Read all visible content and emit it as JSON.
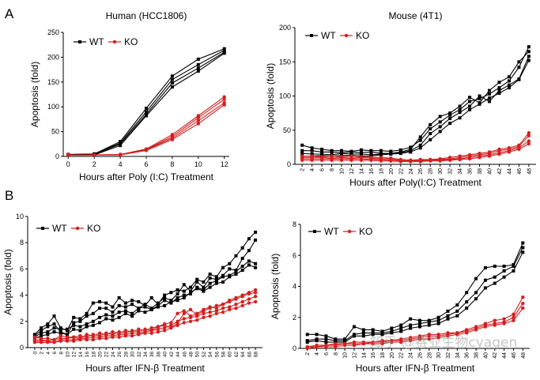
{
  "panel_labels": [
    "A",
    "B"
  ],
  "watermark": "知乎 @赛业生物cyagen",
  "colors": {
    "wt": "#000000",
    "ko": "#d42020"
  },
  "chart_data": [
    {
      "id": "human",
      "type": "line",
      "title": "Human (HCC1806)",
      "xlabel": "Hours after Poly (I:C) Treatment",
      "ylabel": "Apoptosis (fold)",
      "x": [
        0,
        2,
        4,
        6,
        8,
        10,
        12
      ],
      "xticks": [
        0,
        2,
        4,
        6,
        8,
        10,
        12
      ],
      "xticklabels": [
        "0",
        "2",
        "4",
        "6",
        "8",
        "10",
        "12"
      ],
      "ylim": [
        0,
        250
      ],
      "yticks": [
        0,
        50,
        100,
        150,
        200,
        250
      ],
      "yticklabels": [
        "0",
        "50",
        "100",
        "150",
        "200",
        "250"
      ],
      "legend": [
        "WT",
        "KO"
      ],
      "series": [
        {
          "group": "WT",
          "values": [
            4,
            5,
            30,
            97,
            162,
            196,
            217
          ]
        },
        {
          "group": "WT",
          "values": [
            4,
            5,
            27,
            90,
            155,
            185,
            214
          ]
        },
        {
          "group": "WT",
          "values": [
            3,
            4,
            25,
            85,
            148,
            178,
            210
          ]
        },
        {
          "group": "WT",
          "values": [
            3,
            3,
            22,
            82,
            140,
            172,
            208
          ]
        },
        {
          "group": "KO",
          "values": [
            3,
            3,
            4,
            15,
            44,
            82,
            120
          ]
        },
        {
          "group": "KO",
          "values": [
            3,
            3,
            4,
            14,
            40,
            78,
            115
          ]
        },
        {
          "group": "KO",
          "values": [
            3,
            3,
            3,
            13,
            37,
            72,
            108
          ]
        },
        {
          "group": "KO",
          "values": [
            3,
            3,
            3,
            12,
            34,
            66,
            104
          ]
        }
      ]
    },
    {
      "id": "mouse",
      "type": "line",
      "title": "Mouse (4T1)",
      "xlabel": "Hours after Poly(I:C) Treatment",
      "ylabel": "Apoptosis (fold)",
      "x": [
        2,
        4,
        6,
        8,
        10,
        12,
        14,
        16,
        18,
        20,
        22,
        24,
        26,
        28,
        30,
        32,
        34,
        36,
        38,
        40,
        42,
        44,
        46,
        48
      ],
      "xticks": [
        2,
        4,
        6,
        8,
        10,
        12,
        14,
        16,
        18,
        20,
        22,
        24,
        26,
        28,
        30,
        32,
        34,
        36,
        38,
        40,
        42,
        44,
        46,
        48
      ],
      "xticklabels": [
        "2",
        "4",
        "6",
        "8",
        "10",
        "12",
        "14",
        "16",
        "18",
        "20",
        "22",
        "24",
        "26",
        "28",
        "30",
        "32",
        "34",
        "36",
        "38",
        "40",
        "42",
        "44",
        "46",
        "48"
      ],
      "ylim": [
        0,
        200
      ],
      "yticks": [
        0,
        50,
        100,
        150,
        200
      ],
      "yticklabels": [
        "0",
        "50",
        "100",
        "150",
        "200"
      ],
      "legend": [
        "WT",
        "KO"
      ],
      "series": [
        {
          "group": "WT",
          "values": [
            28,
            24,
            22,
            20,
            20,
            19,
            21,
            20,
            20,
            19,
            21,
            25,
            35,
            52,
            62,
            72,
            80,
            92,
            96,
            103,
            112,
            122,
            142,
            172
          ]
        },
        {
          "group": "WT",
          "values": [
            20,
            20,
            18,
            18,
            17,
            18,
            17,
            18,
            16,
            16,
            18,
            22,
            40,
            58,
            70,
            75,
            85,
            98,
            90,
            108,
            120,
            128,
            150,
            165
          ]
        },
        {
          "group": "WT",
          "values": [
            16,
            15,
            15,
            14,
            16,
            15,
            15,
            14,
            15,
            16,
            17,
            20,
            28,
            45,
            55,
            67,
            76,
            85,
            100,
            92,
            108,
            116,
            125,
            158
          ]
        },
        {
          "group": "WT",
          "values": [
            12,
            12,
            13,
            12,
            13,
            13,
            12,
            12,
            14,
            15,
            16,
            18,
            24,
            36,
            48,
            60,
            68,
            80,
            88,
            97,
            104,
            112,
            124,
            152
          ]
        },
        {
          "group": "KO",
          "values": [
            12,
            12,
            11,
            12,
            11,
            12,
            11,
            10,
            10,
            9,
            7,
            6,
            7,
            7,
            8,
            10,
            12,
            14,
            16,
            18,
            22,
            24,
            28,
            46
          ]
        },
        {
          "group": "KO",
          "values": [
            10,
            10,
            10,
            9,
            10,
            9,
            10,
            9,
            8,
            8,
            6,
            6,
            6,
            7,
            7,
            8,
            10,
            12,
            14,
            16,
            20,
            22,
            26,
            42
          ]
        },
        {
          "group": "KO",
          "values": [
            8,
            8,
            8,
            8,
            8,
            8,
            8,
            7,
            7,
            6,
            5,
            5,
            5,
            6,
            6,
            7,
            8,
            10,
            12,
            14,
            17,
            20,
            24,
            34
          ]
        },
        {
          "group": "KO",
          "values": [
            6,
            6,
            6,
            6,
            6,
            6,
            6,
            6,
            5,
            5,
            4,
            4,
            4,
            5,
            5,
            6,
            7,
            8,
            10,
            12,
            15,
            18,
            22,
            30
          ]
        }
      ]
    },
    {
      "id": "ifn-left",
      "type": "line",
      "title": "",
      "xlabel": "Hours after IFN-β Treatment",
      "ylabel": "Apoptosis (fold)",
      "x": [
        0,
        2,
        4,
        6,
        8,
        10,
        12,
        14,
        16,
        18,
        20,
        22,
        24,
        26,
        28,
        30,
        32,
        34,
        36,
        38,
        40,
        42,
        44,
        46,
        48,
        50,
        52,
        54,
        56,
        58,
        60,
        62,
        64,
        66,
        68
      ],
      "xticks": [
        0,
        2,
        4,
        6,
        8,
        10,
        12,
        14,
        16,
        18,
        20,
        22,
        24,
        26,
        28,
        30,
        32,
        34,
        36,
        38,
        40,
        42,
        44,
        46,
        48,
        50,
        52,
        54,
        56,
        58,
        60,
        62,
        64,
        66,
        68
      ],
      "xticklabels": [
        "0",
        "2",
        "4",
        "6",
        "8",
        "10",
        "12",
        "14",
        "16",
        "18",
        "20",
        "22",
        "24",
        "26",
        "28",
        "30",
        "32",
        "34",
        "36",
        "38",
        "40",
        "42",
        "44",
        "46",
        "48",
        "50",
        "52",
        "54",
        "56",
        "58",
        "60",
        "62",
        "64",
        "66",
        "68"
      ],
      "ylim": [
        0,
        10
      ],
      "yticks": [
        0,
        2,
        4,
        6,
        8,
        10
      ],
      "yticklabels": [
        "0",
        "2",
        "4",
        "6",
        "8",
        "10"
      ],
      "legend": [
        "WT",
        "KO"
      ],
      "series": [
        {
          "group": "WT",
          "values": [
            1.0,
            1.5,
            1.8,
            2.4,
            1.5,
            1.3,
            2.3,
            2.2,
            2.6,
            3.4,
            3.5,
            3.4,
            3.1,
            3.8,
            3.4,
            3.6,
            3.5,
            3.2,
            3.8,
            3.3,
            4.0,
            4.2,
            4.4,
            4.3,
            4.6,
            5.2,
            5.0,
            5.6,
            5.4,
            6.1,
            6.4,
            7.0,
            7.6,
            8.3,
            8.8
          ]
        },
        {
          "group": "WT",
          "values": [
            0.9,
            1.3,
            1.6,
            1.8,
            1.2,
            1.0,
            1.9,
            2.0,
            2.4,
            2.6,
            3.0,
            3.0,
            2.7,
            3.2,
            3.1,
            3.3,
            3.0,
            3.3,
            3.0,
            3.4,
            3.8,
            3.6,
            4.1,
            4.8,
            4.3,
            5.0,
            4.6,
            5.3,
            5.2,
            5.5,
            6.0,
            5.9,
            6.8,
            7.4,
            8.2
          ]
        },
        {
          "group": "WT",
          "values": [
            0.8,
            1.1,
            1.2,
            1.5,
            1.4,
            1.4,
            1.7,
            1.6,
            1.8,
            2.0,
            2.3,
            2.5,
            2.4,
            2.7,
            2.8,
            2.6,
            3.0,
            3.1,
            2.9,
            3.2,
            3.6,
            3.4,
            3.8,
            4.0,
            4.1,
            4.6,
            4.4,
            4.9,
            5.1,
            5.4,
            5.5,
            5.8,
            6.2,
            6.6,
            6.4
          ]
        },
        {
          "group": "WT",
          "values": [
            0.7,
            0.9,
            1.0,
            1.2,
            1.1,
            1.0,
            1.4,
            1.3,
            1.6,
            1.7,
            1.9,
            2.2,
            2.1,
            2.3,
            2.6,
            2.4,
            2.8,
            2.7,
            2.9,
            3.1,
            3.2,
            3.5,
            3.6,
            3.8,
            4.2,
            4.5,
            4.3,
            4.6,
            4.9,
            5.0,
            5.4,
            5.6,
            5.9,
            6.3,
            6.1
          ]
        },
        {
          "group": "KO",
          "values": [
            0.8,
            0.7,
            0.7,
            0.6,
            0.9,
            0.8,
            0.8,
            0.7,
            1.0,
            0.9,
            1.1,
            1.0,
            1.2,
            1.1,
            1.3,
            1.2,
            1.4,
            1.3,
            1.5,
            1.6,
            1.7,
            1.5,
            1.9,
            2.6,
            2.9,
            2.5,
            2.8,
            3.0,
            3.2,
            3.3,
            3.6,
            3.8,
            4.0,
            4.2,
            4.4
          ]
        },
        {
          "group": "KO",
          "values": [
            0.6,
            0.6,
            0.5,
            0.6,
            0.7,
            0.7,
            0.8,
            0.9,
            0.8,
            1.0,
            0.9,
            1.1,
            1.0,
            1.2,
            1.1,
            1.3,
            1.2,
            1.4,
            1.3,
            1.6,
            1.8,
            1.9,
            2.6,
            2.8,
            2.4,
            2.6,
            2.9,
            3.1,
            3.0,
            3.3,
            3.5,
            3.7,
            3.9,
            4.1,
            4.2
          ]
        },
        {
          "group": "KO",
          "values": [
            0.5,
            0.5,
            0.5,
            0.4,
            0.6,
            0.6,
            0.6,
            0.7,
            0.7,
            0.8,
            0.8,
            0.9,
            0.9,
            1.0,
            1.0,
            1.1,
            1.1,
            1.2,
            1.3,
            1.4,
            1.5,
            1.7,
            2.0,
            2.2,
            2.3,
            2.4,
            2.6,
            2.7,
            2.8,
            3.0,
            3.1,
            3.3,
            3.5,
            3.7,
            3.9
          ]
        },
        {
          "group": "KO",
          "values": [
            0.4,
            0.4,
            0.4,
            0.4,
            0.5,
            0.5,
            0.5,
            0.6,
            0.6,
            0.6,
            0.7,
            0.7,
            0.8,
            0.8,
            0.9,
            0.9,
            1.0,
            1.1,
            1.1,
            1.2,
            1.3,
            1.5,
            1.7,
            1.9,
            2.0,
            2.1,
            2.3,
            2.4,
            2.6,
            2.7,
            2.9,
            3.0,
            3.2,
            3.4,
            3.5
          ]
        }
      ]
    },
    {
      "id": "ifn-right",
      "type": "line",
      "title": "",
      "xlabel": "Hours after IFN-β Treatment",
      "ylabel": "Apoptosis (fold)",
      "x": [
        2,
        4,
        6,
        8,
        10,
        12,
        14,
        16,
        18,
        20,
        22,
        24,
        26,
        28,
        30,
        32,
        34,
        36,
        38,
        40,
        42,
        44,
        46,
        48
      ],
      "xticks": [
        2,
        4,
        6,
        8,
        10,
        12,
        14,
        16,
        18,
        20,
        22,
        24,
        26,
        28,
        30,
        32,
        34,
        36,
        38,
        40,
        42,
        44,
        46,
        48
      ],
      "xticklabels": [
        "2",
        "4",
        "6",
        "8",
        "10",
        "12",
        "14",
        "16",
        "18",
        "20",
        "22",
        "24",
        "26",
        "28",
        "30",
        "32",
        "34",
        "36",
        "38",
        "40",
        "42",
        "44",
        "46",
        "48"
      ],
      "ylim": [
        0,
        8
      ],
      "yticks": [
        0,
        2,
        4,
        6,
        8
      ],
      "yticklabels": [
        "0",
        "2",
        "4",
        "6",
        "8"
      ],
      "legend": [
        "WT",
        "KO"
      ],
      "series": [
        {
          "group": "WT",
          "values": [
            0.9,
            0.9,
            0.8,
            0.6,
            0.6,
            1.4,
            1.2,
            1.2,
            1.1,
            1.3,
            1.5,
            1.9,
            1.8,
            1.8,
            2.0,
            2.4,
            2.8,
            3.6,
            4.5,
            5.2,
            5.3,
            5.3,
            5.4,
            6.8
          ]
        },
        {
          "group": "WT",
          "values": [
            0.5,
            0.6,
            0.6,
            0.5,
            0.5,
            0.9,
            1.0,
            1.0,
            1.0,
            1.1,
            1.3,
            1.5,
            1.6,
            1.7,
            1.8,
            2.1,
            2.4,
            3.0,
            3.6,
            4.4,
            4.6,
            5.0,
            5.3,
            6.5
          ]
        },
        {
          "group": "WT",
          "values": [
            0.4,
            0.5,
            0.4,
            0.4,
            0.4,
            0.8,
            0.8,
            0.9,
            0.9,
            1.0,
            1.1,
            1.3,
            1.4,
            1.5,
            1.6,
            1.9,
            2.1,
            2.6,
            3.2,
            3.9,
            4.2,
            4.6,
            5.0,
            6.2
          ]
        },
        {
          "group": "KO",
          "values": [
            0.1,
            0.2,
            0.2,
            0.3,
            0.3,
            0.4,
            0.4,
            0.4,
            0.5,
            0.5,
            0.6,
            0.7,
            0.8,
            0.9,
            0.9,
            1.0,
            1.0,
            1.2,
            1.4,
            1.6,
            1.8,
            1.9,
            2.2,
            3.3
          ]
        },
        {
          "group": "KO",
          "values": [
            0.1,
            0.1,
            0.2,
            0.2,
            0.3,
            0.3,
            0.3,
            0.4,
            0.4,
            0.5,
            0.5,
            0.6,
            0.7,
            0.8,
            0.8,
            0.9,
            1.0,
            1.1,
            1.3,
            1.5,
            1.6,
            1.7,
            2.0,
            2.9
          ]
        },
        {
          "group": "KO",
          "values": [
            0.0,
            0.1,
            0.1,
            0.1,
            0.2,
            0.2,
            0.3,
            0.3,
            0.3,
            0.4,
            0.4,
            0.5,
            0.6,
            0.6,
            0.7,
            0.8,
            0.9,
            1.0,
            1.2,
            1.4,
            1.5,
            1.6,
            1.8,
            2.6
          ]
        }
      ]
    }
  ]
}
